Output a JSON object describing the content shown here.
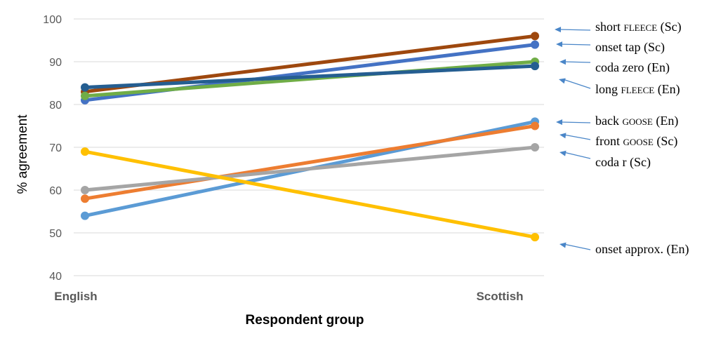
{
  "chart_data": {
    "type": "line",
    "xlabel": "Respondent group",
    "ylabel": "% agreement",
    "categories": [
      "English",
      "Scottish"
    ],
    "ylim": [
      40,
      100
    ],
    "yticks": [
      40,
      50,
      60,
      70,
      80,
      90,
      100
    ],
    "grid": true,
    "legend_placement": "right",
    "series": [
      {
        "name": "short FLEECE (Sc)",
        "legend_main": "short ",
        "legend_sc": "FLEECE",
        "legend_tail": " (Sc)",
        "values": [
          83,
          96
        ],
        "color": "#9e480e"
      },
      {
        "name": "onset tap (Sc)",
        "legend_main": "onset tap (Sc)",
        "legend_sc": "",
        "legend_tail": "",
        "values": [
          81,
          94
        ],
        "color": "#4472c4"
      },
      {
        "name": "coda zero (En)",
        "legend_main": "coda zero (En)",
        "legend_sc": "",
        "legend_tail": "",
        "values": [
          82,
          90
        ],
        "color": "#70ad47"
      },
      {
        "name": "long FLEECE (En)",
        "legend_main": "long ",
        "legend_sc": "FLEECE",
        "legend_tail": " (En)",
        "values": [
          84,
          89
        ],
        "color": "#255e91"
      },
      {
        "name": "back GOOSE (En)",
        "legend_main": "back ",
        "legend_sc": "GOOSE",
        "legend_tail": " (En)",
        "values": [
          54,
          76
        ],
        "color": "#5b9bd5"
      },
      {
        "name": "front GOOSE (Sc)",
        "legend_main": "front ",
        "legend_sc": "GOOSE",
        "legend_tail": " (Sc)",
        "values": [
          58,
          75
        ],
        "color": "#ed7d31"
      },
      {
        "name": "coda r (Sc)",
        "legend_main": "coda r (Sc)",
        "legend_sc": "",
        "legend_tail": "",
        "values": [
          60,
          70
        ],
        "color": "#a5a5a5"
      },
      {
        "name": "onset approx. (En)",
        "legend_main": "onset approx. (En)",
        "legend_sc": "",
        "legend_tail": "",
        "values": [
          69,
          49
        ],
        "color": "#ffc000"
      }
    ],
    "arrow_color": "#4a86c8"
  }
}
